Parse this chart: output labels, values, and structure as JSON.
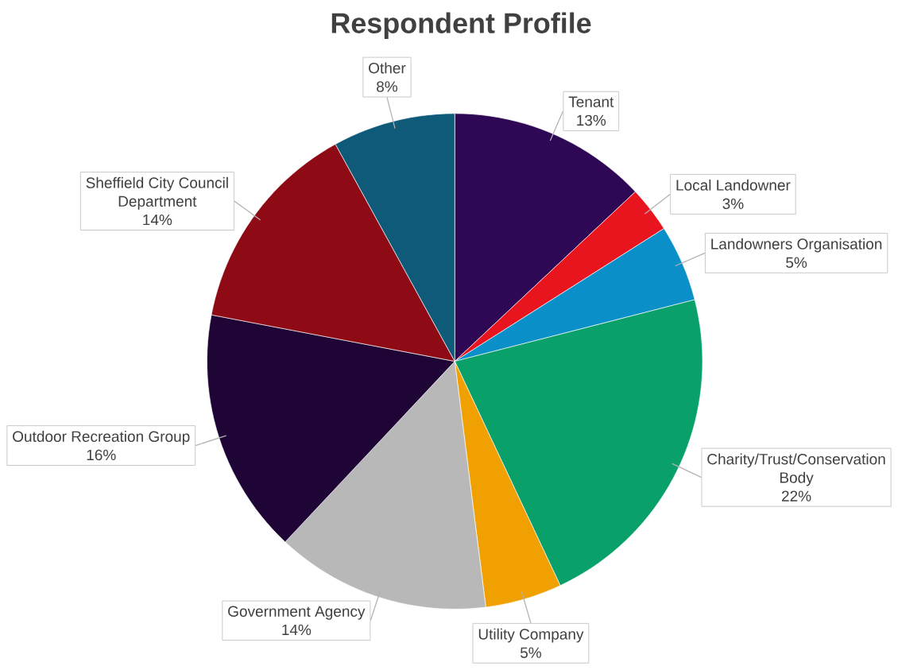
{
  "chart_data": {
    "type": "pie",
    "title": "Respondent Profile",
    "categories": [
      "Tenant",
      "Local Landowner",
      "Landowners Organisation",
      "Charity/Trust/Conservation Body",
      "Utility Company",
      "Government Agency",
      "Outdoor Recreation Group",
      "Sheffield City Council Department",
      "Other"
    ],
    "values": [
      13,
      3,
      5,
      22,
      5,
      14,
      16,
      14,
      8
    ],
    "value_labels": [
      "13%",
      "3%",
      "5%",
      "22%",
      "5%",
      "14%",
      "16%",
      "14%",
      "8%"
    ],
    "colors": [
      "#2e0854",
      "#e8141e",
      "#0a8fc8",
      "#0aa06a",
      "#f0a000",
      "#b8b8b8",
      "#1e0536",
      "#8e0a14",
      "#0e5a78"
    ]
  }
}
